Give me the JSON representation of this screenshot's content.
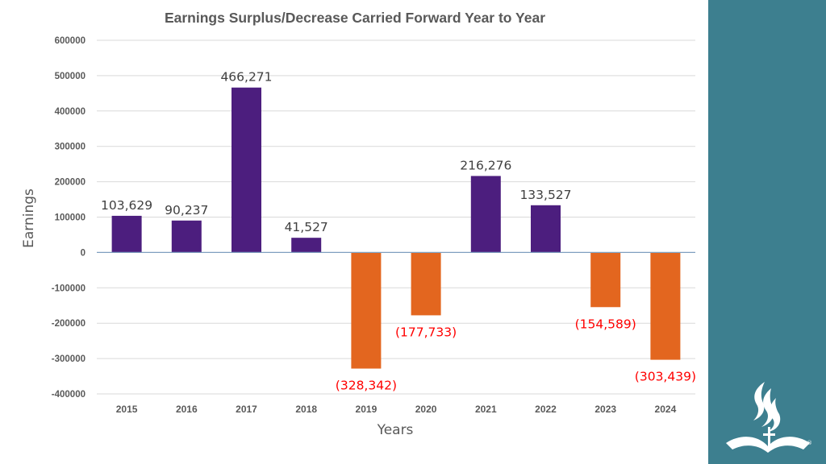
{
  "chart_data": {
    "type": "bar",
    "title": "Earnings Surplus/Decrease Carried Forward Year to Year",
    "xlabel": "Years",
    "ylabel": "Earnings",
    "ylim": [
      -400000,
      600000
    ],
    "ytick_step": 100000,
    "ytick_labels": [
      "600000",
      "500000",
      "400000",
      "300000",
      "200000",
      "100000",
      "0",
      "-100000",
      "-200000",
      "-300000",
      "-400000"
    ],
    "categories": [
      "2015",
      "2016",
      "2017",
      "2018",
      "2019",
      "2020",
      "2021",
      "2022",
      "2023",
      "2024"
    ],
    "values": [
      103629,
      90237,
      466271,
      41527,
      -328342,
      -177733,
      216276,
      133527,
      -154589,
      -303439
    ],
    "data_labels": [
      "103,629",
      "90,237",
      "466,271",
      "41,527",
      "(328,342)",
      "(177,733)",
      "216,276",
      "133,527",
      "(154,589)",
      "(303,439)"
    ],
    "grid": true,
    "legend": "none",
    "colors": {
      "positive_bar": "#4C1E7E",
      "negative_bar": "#E3661F",
      "positive_label": "#404040",
      "negative_label": "#FF0000",
      "gridline": "#D9D9D9",
      "zero_line": "#7F9FBF"
    }
  },
  "side_panel": {
    "background": "#3D7F8F",
    "logo_icon": "flame-bible-logo-icon",
    "registered_mark": "®"
  }
}
